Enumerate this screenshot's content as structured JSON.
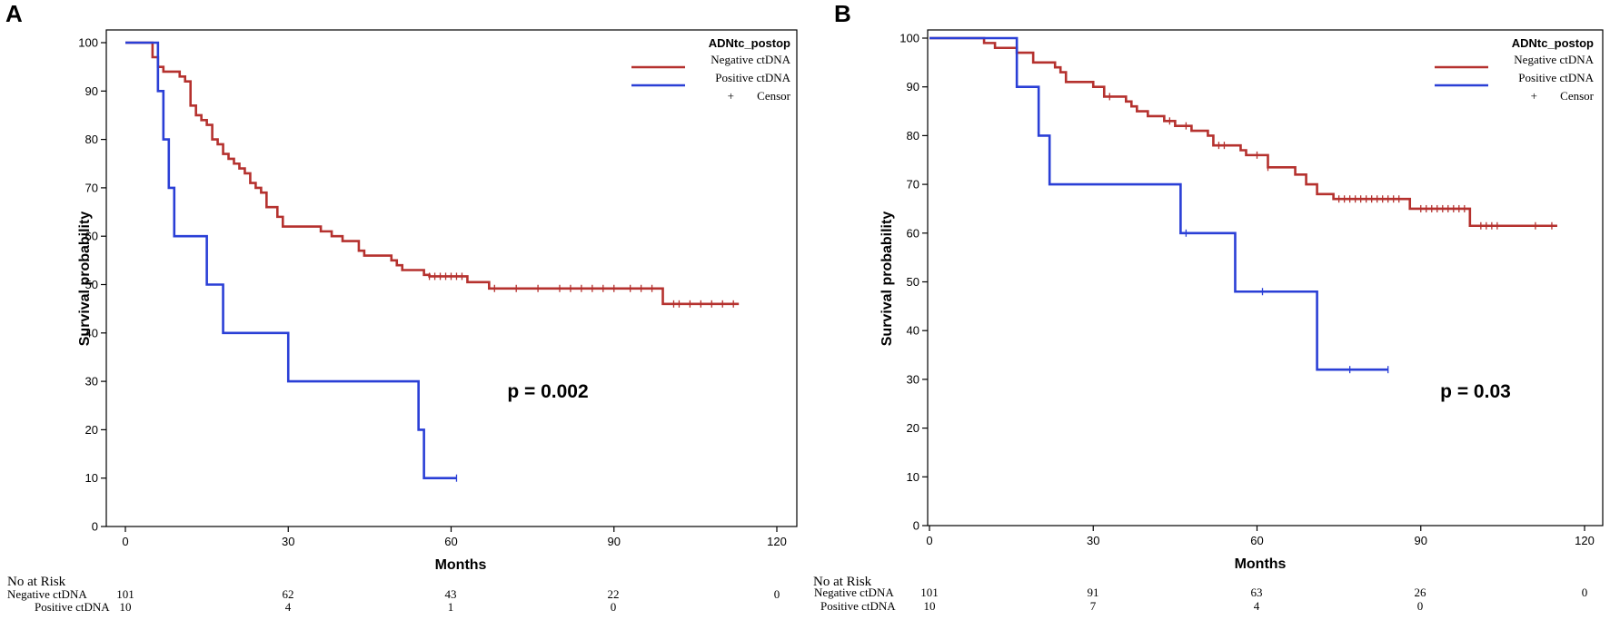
{
  "colors": {
    "negative": "#b5312e",
    "positive": "#2a3fd6"
  },
  "chart_data": [
    {
      "panel": "A",
      "type": "line",
      "xlabel": "Months",
      "ylabel": "Survival probability",
      "xlim": [
        0,
        120
      ],
      "ylim": [
        0,
        100
      ],
      "xticks": [
        "0",
        "30",
        "60",
        "90",
        "120"
      ],
      "yticks": [
        "0",
        "10",
        "20",
        "30",
        "40",
        "50",
        "60",
        "70",
        "80",
        "90",
        "100"
      ],
      "legend": {
        "title": "ADNtc_postop",
        "negative": "Negative ctDNA",
        "positive": "Positive ctDNA",
        "censor": "Censor"
      },
      "pvalue": "p = 0.002",
      "series": [
        {
          "name": "Negative ctDNA",
          "color": "negative",
          "steps": [
            [
              0,
              100
            ],
            [
              5,
              97
            ],
            [
              6,
              95
            ],
            [
              7,
              94
            ],
            [
              10,
              93
            ],
            [
              11,
              92
            ],
            [
              12,
              87
            ],
            [
              13,
              85
            ],
            [
              14,
              84
            ],
            [
              15,
              83
            ],
            [
              16,
              80
            ],
            [
              17,
              79
            ],
            [
              18,
              77
            ],
            [
              19,
              76
            ],
            [
              20,
              75
            ],
            [
              21,
              74
            ],
            [
              22,
              73
            ],
            [
              23,
              71
            ],
            [
              24,
              70
            ],
            [
              25,
              69
            ],
            [
              26,
              66
            ],
            [
              28,
              64
            ],
            [
              29,
              62
            ],
            [
              36,
              61
            ],
            [
              38,
              60
            ],
            [
              40,
              59
            ],
            [
              43,
              57
            ],
            [
              44,
              56
            ],
            [
              48,
              56
            ],
            [
              49,
              55
            ],
            [
              50,
              54
            ],
            [
              51,
              53
            ],
            [
              55,
              52
            ],
            [
              56,
              51.7
            ],
            [
              63,
              50.5
            ],
            [
              67,
              49.2
            ],
            [
              99,
              46
            ],
            [
              113,
              46
            ]
          ],
          "censors": [
            56,
            57,
            58,
            59,
            60,
            61,
            62,
            68,
            72,
            76,
            80,
            82,
            84,
            86,
            88,
            90,
            93,
            95,
            97,
            101,
            102,
            104,
            106,
            108,
            110,
            112
          ]
        },
        {
          "name": "Positive ctDNA",
          "color": "positive",
          "steps": [
            [
              0,
              100
            ],
            [
              6,
              90
            ],
            [
              7,
              80
            ],
            [
              8,
              70
            ],
            [
              9,
              60
            ],
            [
              15,
              50
            ],
            [
              18,
              40
            ],
            [
              30,
              30
            ],
            [
              54,
              20
            ],
            [
              55,
              10
            ],
            [
              61,
              10
            ]
          ],
          "censors": [
            61
          ]
        }
      ],
      "risk_table": {
        "header": "No at Risk",
        "rows": [
          {
            "label": "Negative ctDNA",
            "values": [
              "101",
              "62",
              "43",
              "22",
              "0"
            ]
          },
          {
            "label": "Positive ctDNA",
            "values": [
              "10",
              "4",
              "1",
              "0",
              ""
            ]
          }
        ]
      }
    },
    {
      "panel": "B",
      "type": "line",
      "xlabel": "Months",
      "ylabel": "Survival probability",
      "xlim": [
        0,
        120
      ],
      "ylim": [
        0,
        100
      ],
      "xticks": [
        "0",
        "30",
        "60",
        "90",
        "120"
      ],
      "yticks": [
        "0",
        "10",
        "20",
        "30",
        "40",
        "50",
        "60",
        "70",
        "80",
        "90",
        "100"
      ],
      "legend": {
        "title": "ADNtc_postop",
        "negative": "Negative ctDNA",
        "positive": "Positive ctDNA",
        "censor": "Censor"
      },
      "pvalue": "p = 0.03",
      "series": [
        {
          "name": "Negative ctDNA",
          "color": "negative",
          "steps": [
            [
              0,
              100
            ],
            [
              10,
              99
            ],
            [
              12,
              98
            ],
            [
              16,
              97
            ],
            [
              19,
              95
            ],
            [
              23,
              94
            ],
            [
              24,
              93
            ],
            [
              25,
              91
            ],
            [
              30,
              90
            ],
            [
              32,
              88
            ],
            [
              36,
              87
            ],
            [
              37,
              86
            ],
            [
              38,
              85
            ],
            [
              40,
              84
            ],
            [
              43,
              83
            ],
            [
              45,
              82
            ],
            [
              48,
              81
            ],
            [
              51,
              80
            ],
            [
              52,
              78
            ],
            [
              57,
              77
            ],
            [
              58,
              76
            ],
            [
              62,
              73.5
            ],
            [
              67,
              72
            ],
            [
              69,
              70
            ],
            [
              71,
              68
            ],
            [
              74,
              67
            ],
            [
              88,
              65
            ],
            [
              99,
              61.5
            ],
            [
              115,
              61.5
            ]
          ],
          "censors": [
            33,
            44,
            47,
            53,
            54,
            60,
            62,
            75,
            76,
            77,
            78,
            79,
            80,
            81,
            82,
            83,
            84,
            85,
            86,
            90,
            91,
            92,
            93,
            94,
            95,
            96,
            97,
            98,
            101,
            102,
            103,
            104,
            111,
            114
          ]
        },
        {
          "name": "Positive ctDNA",
          "color": "positive",
          "steps": [
            [
              0,
              100
            ],
            [
              16,
              90
            ],
            [
              20,
              80
            ],
            [
              22,
              70
            ],
            [
              46,
              60
            ],
            [
              56,
              48
            ],
            [
              71,
              32
            ],
            [
              84,
              32
            ]
          ],
          "censors": [
            47,
            61,
            77,
            84
          ]
        }
      ],
      "risk_table": {
        "header": "No at Risk",
        "rows": [
          {
            "label": "Negative ctDNA",
            "values": [
              "101",
              "91",
              "63",
              "26",
              "0"
            ]
          },
          {
            "label": "Positive ctDNA",
            "values": [
              "10",
              "7",
              "4",
              "0",
              ""
            ]
          }
        ]
      }
    }
  ]
}
